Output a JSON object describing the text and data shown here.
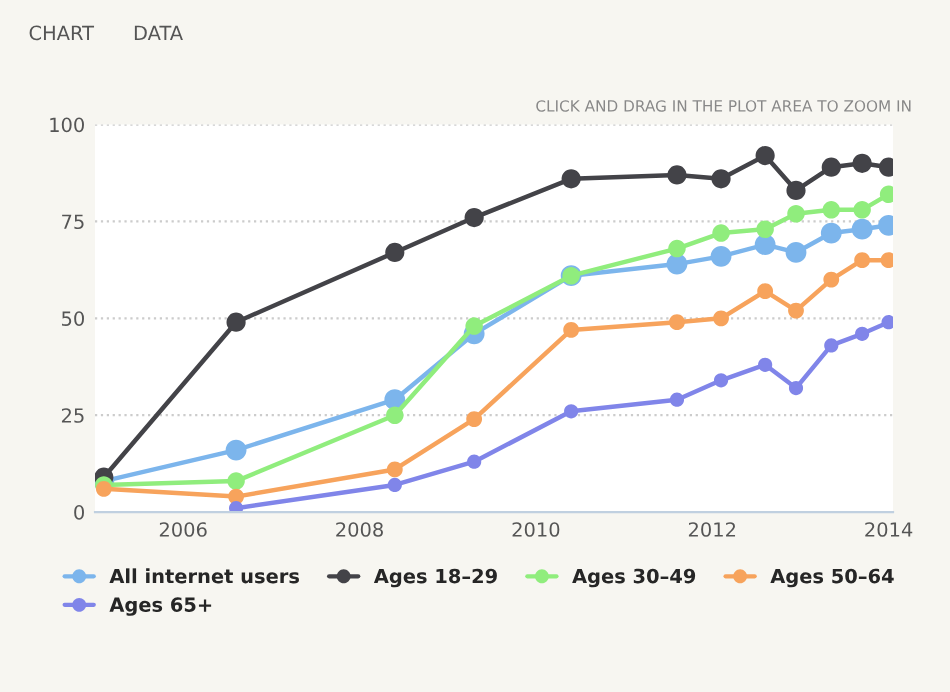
{
  "chart_data": {
    "type": "line",
    "x": [
      2005.1,
      2006.6,
      2008.4,
      2009.3,
      2010.4,
      2011.6,
      2012.1,
      2012.6,
      2012.95,
      2013.35,
      2013.7,
      2014.0
    ],
    "series": [
      {
        "name": "All internet users",
        "color": "#7cb5ec",
        "values": [
          8,
          16,
          29,
          46,
          61,
          64,
          66,
          69,
          67,
          72,
          73,
          74
        ]
      },
      {
        "name": "Ages 18–29",
        "color": "#434348",
        "values": [
          9,
          49,
          67,
          76,
          86,
          87,
          86,
          92,
          83,
          89,
          90,
          89
        ]
      },
      {
        "name": "Ages 30–49",
        "color": "#90ed7d",
        "values": [
          7,
          8,
          25,
          48,
          61,
          68,
          72,
          73,
          77,
          78,
          78,
          82
        ]
      },
      {
        "name": "Ages 50–64",
        "color": "#f7a35c",
        "values": [
          6,
          4,
          11,
          24,
          47,
          49,
          50,
          57,
          52,
          60,
          65,
          65
        ]
      },
      {
        "name": "Ages 65+",
        "color": "#8085e9",
        "values": [
          null,
          1,
          7,
          13,
          26,
          29,
          34,
          38,
          32,
          43,
          46,
          49
        ]
      }
    ],
    "xlim": [
      2005,
      2014.05
    ],
    "xticks": [
      2006,
      2008,
      2010,
      2012,
      2014
    ],
    "ylim": [
      0,
      100
    ],
    "yticks": [
      0,
      25,
      50,
      75,
      100
    ],
    "grid": "y",
    "legend": "bottom",
    "marker": "circle",
    "line_style": "solid",
    "annotations": [
      "CHART",
      "DATA",
      "CLICK AND DRAG IN THE PLOT AREA TO ZOOM IN"
    ]
  }
}
